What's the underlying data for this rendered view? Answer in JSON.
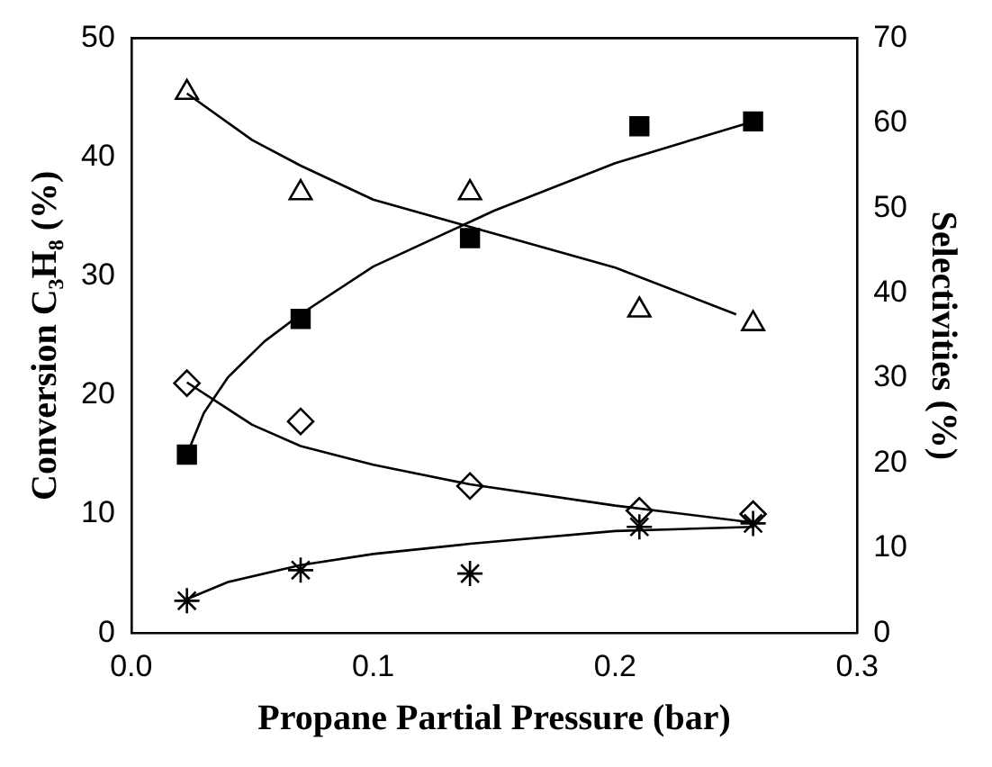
{
  "chart_data": {
    "type": "scatter",
    "xlabel": "Propane Partial Pressure (bar)",
    "ylabel": "Conversion C₃H₈ (%)",
    "y2label": "Selectivities (%)",
    "xlim": [
      0,
      0.3
    ],
    "xticks": [
      {
        "value": 0,
        "label": "0.0"
      },
      0.1,
      0.2,
      0.3
    ],
    "ylim": [
      0,
      50
    ],
    "yticks": [
      0,
      10,
      20,
      30,
      40,
      50
    ],
    "y2lim": [
      0,
      70
    ],
    "y2ticks": [
      0,
      10,
      20,
      30,
      40,
      50,
      60,
      70
    ],
    "grid": false,
    "legend": false,
    "series": [
      {
        "marker": "square",
        "color": "#000000",
        "x": [
          0.023,
          0.07,
          0.14,
          0.21,
          0.257
        ],
        "values": [
          15.0,
          26.4,
          33.2,
          42.6,
          43.0
        ]
      },
      {
        "marker": "triangle",
        "color": "#000000",
        "axis": "y2",
        "x": [
          0.023,
          0.07,
          0.14,
          0.21,
          0.257
        ],
        "values": [
          63.6,
          51.8,
          51.8,
          38.0,
          36.4
        ]
      },
      {
        "marker": "diamond",
        "color": "#000000",
        "axis": "y2",
        "x": [
          0.023,
          0.07,
          0.14,
          0.21,
          0.257
        ],
        "values": [
          29.4,
          24.9,
          17.3,
          14.4,
          14.0
        ]
      },
      {
        "marker": "cross",
        "color": "#000000",
        "axis": "y2",
        "x": [
          0.023,
          0.07,
          0.14,
          0.21,
          0.257
        ],
        "values": [
          3.8,
          7.4,
          7.0,
          12.5,
          12.9
        ]
      },
      {
        "type": "line",
        "marker": "none",
        "color": "#000000",
        "x": [
          0.023,
          0.03,
          0.04,
          0.055,
          0.07,
          0.1,
          0.15,
          0.2,
          0.257
        ],
        "values": [
          15.0,
          18.5,
          21.5,
          24.5,
          26.8,
          30.8,
          35.5,
          39.5,
          43.0
        ]
      },
      {
        "type": "line",
        "marker": "none",
        "color": "#000000",
        "axis": "y2",
        "x": [
          0.023,
          0.05,
          0.07,
          0.1,
          0.15,
          0.2,
          0.25
        ],
        "values": [
          63.5,
          58.0,
          55.0,
          51.0,
          47.0,
          43.0,
          37.5
        ]
      },
      {
        "type": "line",
        "marker": "none",
        "color": "#000000",
        "axis": "y2",
        "x": [
          0.023,
          0.05,
          0.07,
          0.1,
          0.14,
          0.2,
          0.257
        ],
        "values": [
          29.5,
          24.5,
          22.0,
          19.8,
          17.5,
          15.0,
          13.0
        ]
      },
      {
        "type": "line",
        "marker": "none",
        "color": "#000000",
        "axis": "y2",
        "x": [
          0.023,
          0.04,
          0.07,
          0.1,
          0.14,
          0.2,
          0.257
        ],
        "values": [
          4.0,
          6.0,
          8.0,
          9.3,
          10.5,
          12.0,
          12.5
        ]
      }
    ]
  }
}
